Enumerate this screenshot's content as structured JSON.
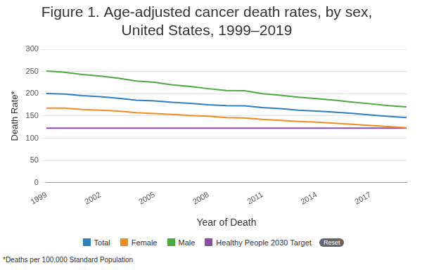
{
  "chart_data": {
    "type": "line",
    "title": [
      "Figure 1. Age-adjusted cancer death rates, by sex,",
      "United States, 1999–2019"
    ],
    "x_label": "Year of Death",
    "y_label": "Death Rate*",
    "footnote": "*Deaths per 100,000 Standard Population",
    "reset_button": "Reset",
    "x": [
      1999,
      2000,
      2001,
      2002,
      2003,
      2004,
      2005,
      2006,
      2007,
      2008,
      2009,
      2010,
      2011,
      2012,
      2013,
      2014,
      2015,
      2016,
      2017,
      2018,
      2019
    ],
    "series": [
      {
        "name": "Total",
        "color": "#2f7ebc",
        "values": [
          200.8,
          199.6,
          196.0,
          193.5,
          190.1,
          185.8,
          184.0,
          180.7,
          178.4,
          175.3,
          173.5,
          172.8,
          169.0,
          166.5,
          163.2,
          161.2,
          158.5,
          155.8,
          152.5,
          149.1,
          146.2
        ]
      },
      {
        "name": "Female",
        "color": "#f58b1f",
        "values": [
          167.6,
          167.6,
          164.7,
          163.1,
          160.9,
          157.4,
          155.6,
          153.6,
          151.3,
          149.4,
          146.4,
          145.7,
          142.3,
          140.1,
          137.7,
          135.9,
          133.5,
          131.3,
          128.6,
          126.2,
          123.5
        ]
      },
      {
        "name": "Male",
        "color": "#4aab3c",
        "values": [
          251.6,
          248.8,
          243.7,
          240.1,
          235.2,
          228.7,
          226.1,
          220.1,
          216.7,
          211.6,
          207.4,
          207.0,
          200.3,
          196.8,
          192.4,
          189.2,
          185.5,
          181.4,
          177.5,
          173.2,
          170.4
        ]
      },
      {
        "name": "Healthy People 2030 Target",
        "color": "#8b4ea8",
        "values": [
          122.7,
          122.7,
          122.7,
          122.7,
          122.7,
          122.7,
          122.7,
          122.7,
          122.7,
          122.7,
          122.7,
          122.7,
          122.7,
          122.7,
          122.7,
          122.7,
          122.7,
          122.7,
          122.7,
          122.7,
          122.7
        ]
      }
    ],
    "xlim": [
      1999,
      2019
    ],
    "xticks": [
      1999,
      2002,
      2005,
      2008,
      2011,
      2014,
      2017
    ],
    "ylim": [
      0,
      300
    ],
    "yticks": [
      0,
      50,
      100,
      150,
      200,
      250,
      300
    ],
    "grid": true,
    "legend": "bottom",
    "marker": "none",
    "line_style": "solid"
  }
}
